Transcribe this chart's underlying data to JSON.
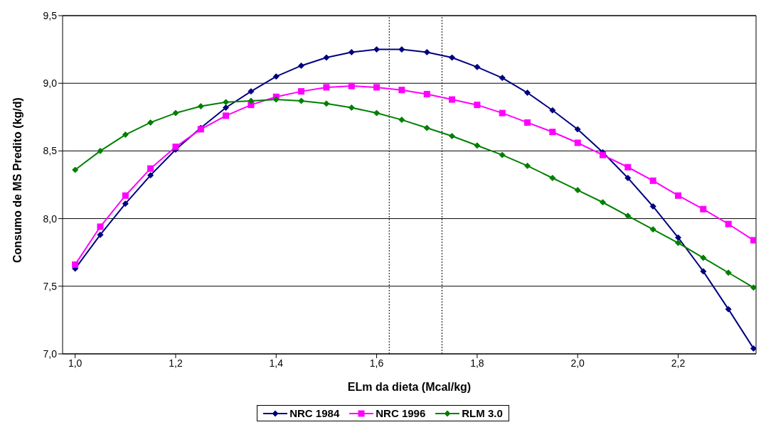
{
  "chart_data": {
    "type": "line",
    "xlabel": "ELm da dieta (Mcal/kg)",
    "ylabel": "Consumo de MS Predito (kg/d)",
    "x": [
      1.0,
      1.05,
      1.1,
      1.15,
      1.2,
      1.25,
      1.3,
      1.35,
      1.4,
      1.45,
      1.5,
      1.55,
      1.6,
      1.65,
      1.7,
      1.75,
      1.8,
      1.85,
      1.9,
      1.95,
      2.0,
      2.05,
      2.1,
      2.15,
      2.2,
      2.25,
      2.3,
      2.35
    ],
    "series": [
      {
        "name": "NRC 1984",
        "color": "#000080",
        "marker": "diamond",
        "values": [
          7.63,
          7.88,
          8.11,
          8.32,
          8.51,
          8.67,
          8.82,
          8.94,
          9.05,
          9.13,
          9.19,
          9.23,
          9.25,
          9.25,
          9.23,
          9.19,
          9.12,
          9.04,
          8.93,
          8.8,
          8.66,
          8.49,
          8.3,
          8.09,
          7.86,
          7.61,
          7.33,
          7.04
        ]
      },
      {
        "name": "NRC 1996",
        "color": "#ff00ff",
        "marker": "square",
        "values": [
          7.66,
          7.94,
          8.17,
          8.37,
          8.53,
          8.66,
          8.76,
          8.84,
          8.9,
          8.94,
          8.97,
          8.98,
          8.97,
          8.95,
          8.92,
          8.88,
          8.84,
          8.78,
          8.71,
          8.64,
          8.56,
          8.47,
          8.38,
          8.28,
          8.17,
          8.07,
          7.96,
          7.84
        ]
      },
      {
        "name": "RLM 3.0",
        "color": "#008000",
        "marker": "diamond",
        "values": [
          8.36,
          8.5,
          8.62,
          8.71,
          8.78,
          8.83,
          8.86,
          8.87,
          8.88,
          8.87,
          8.85,
          8.82,
          8.78,
          8.73,
          8.67,
          8.61,
          8.54,
          8.47,
          8.39,
          8.3,
          8.21,
          8.12,
          8.02,
          7.92,
          7.82,
          7.71,
          7.6,
          7.49
        ]
      }
    ],
    "xlim": [
      0.975,
      2.355
    ],
    "xticks": [
      {
        "value": 1.0,
        "label": "1,0"
      },
      {
        "value": 1.2,
        "label": "1,2"
      },
      {
        "value": 1.4,
        "label": "1,4"
      },
      {
        "value": 1.6,
        "label": "1,6"
      },
      {
        "value": 1.8,
        "label": "1,8"
      },
      {
        "value": 2.0,
        "label": "2,0"
      },
      {
        "value": 2.2,
        "label": "2,2"
      }
    ],
    "ylim": [
      7.0,
      9.5
    ],
    "yticks": [
      {
        "value": 7.0,
        "label": "7,0"
      },
      {
        "value": 7.5,
        "label": "7,5"
      },
      {
        "value": 8.0,
        "label": "8,0"
      },
      {
        "value": 8.5,
        "label": "8,5"
      },
      {
        "value": 9.0,
        "label": "9,0"
      },
      {
        "value": 9.5,
        "label": "9,5"
      }
    ],
    "ref_lines": [
      {
        "axis": "x",
        "value": 1.625,
        "line_style": "dotted",
        "color": "#000000"
      },
      {
        "axis": "x",
        "value": 1.73,
        "line_style": "dotted",
        "color": "#000000"
      }
    ],
    "grid": "y",
    "legend": "bottom",
    "line_style": "solid"
  }
}
